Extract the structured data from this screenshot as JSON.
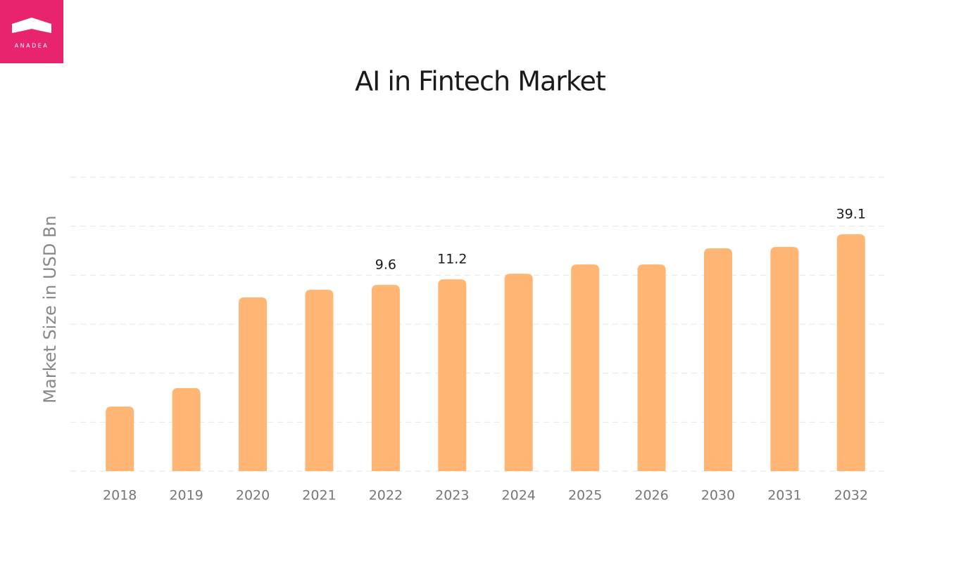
{
  "logo": "ANADEA",
  "chart_data": {
    "type": "bar",
    "title": "AI in Fintech Market",
    "y_label": "Market Size in USD Bn",
    "categories": [
      "2018",
      "2019",
      "2020",
      "2021",
      "2022",
      "2023",
      "2024",
      "2025",
      "2026",
      "2030",
      "2031",
      "2032"
    ],
    "values": [
      0.33,
      0.55,
      6.8,
      8.4,
      9.6,
      11.2,
      13.1,
      16.9,
      16.9,
      26.5,
      27.5,
      39.1
    ],
    "value_labels": [
      null,
      null,
      null,
      null,
      "9.6",
      "11.2",
      null,
      null,
      null,
      null,
      null,
      "39.1"
    ],
    "color": "#ffb574",
    "log_scale": true,
    "ylim": [
      0.055,
      190
    ],
    "grid": true
  }
}
